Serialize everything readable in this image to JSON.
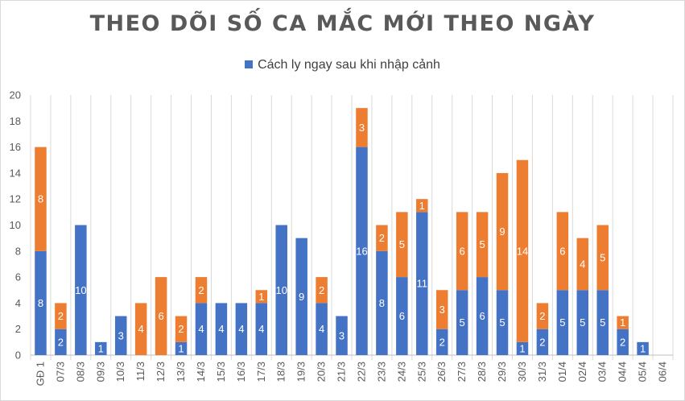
{
  "chart_data": {
    "type": "bar",
    "stacked": true,
    "title": "THEO DÕI SỐ CA MẮC MỚI THEO NGÀY",
    "legend": [
      {
        "label": "Cách ly ngay sau khi nhập cảnh",
        "color": "#4472c4"
      }
    ],
    "legend_position": "top",
    "grid": "vertical",
    "ylim": [
      0,
      20
    ],
    "yticks": [
      0,
      2,
      4,
      6,
      8,
      10,
      12,
      14,
      16,
      18,
      20
    ],
    "categories": [
      "GĐ 1",
      "07/3",
      "08/3",
      "09/3",
      "10/3",
      "11/3",
      "12/3",
      "13/3",
      "14/3",
      "15/3",
      "16/3",
      "17/3",
      "18/3",
      "19/3",
      "20/3",
      "21/3",
      "22/3",
      "23/3",
      "24/3",
      "25/3",
      "26/3",
      "27/3",
      "28/3",
      "29/3",
      "30/3",
      "31/3",
      "01/4",
      "02/4",
      "03/4",
      "04/4",
      "05/4",
      "06/4"
    ],
    "series": [
      {
        "name": "Cách ly ngay sau khi nhập cảnh",
        "color": "#4472c4",
        "values": [
          8,
          2,
          10,
          1,
          3,
          0,
          0,
          1,
          4,
          4,
          4,
          4,
          10,
          9,
          4,
          3,
          16,
          8,
          6,
          11,
          2,
          5,
          6,
          5,
          1,
          2,
          5,
          5,
          5,
          2,
          1,
          0
        ]
      },
      {
        "color": "#ed7d31",
        "values": [
          8,
          2,
          0,
          0,
          0,
          4,
          6,
          2,
          2,
          0,
          0,
          1,
          0,
          0,
          2,
          0,
          3,
          2,
          5,
          1,
          3,
          6,
          5,
          9,
          14,
          2,
          6,
          4,
          5,
          1,
          0,
          0
        ]
      }
    ]
  }
}
